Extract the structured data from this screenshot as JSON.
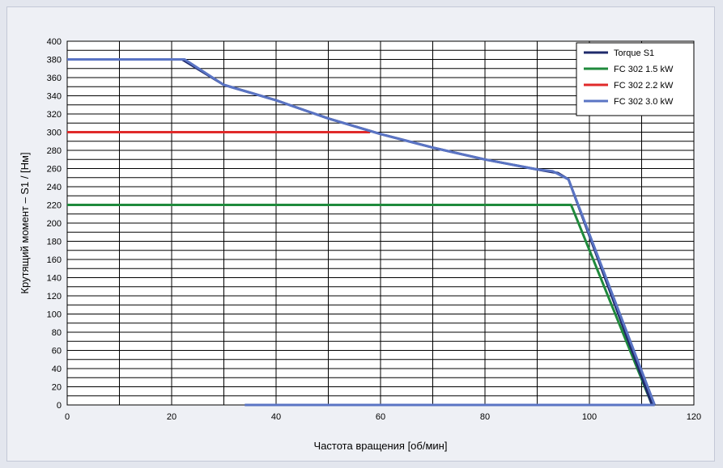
{
  "chart_data": {
    "type": "line",
    "xlabel": "Частота вращения [об/мин]",
    "ylabel": "Крутящий момент – S1 / [Нм]",
    "xlim": [
      0,
      120
    ],
    "ylim": [
      0,
      400
    ],
    "x_ticks": [
      "0",
      "20",
      "40",
      "60",
      "80",
      "100",
      "120"
    ],
    "y_ticks": [
      "0",
      "20",
      "40",
      "60",
      "80",
      "100",
      "120",
      "140",
      "160",
      "180",
      "200",
      "220",
      "240",
      "260",
      "280",
      "300",
      "320",
      "340",
      "360",
      "380",
      "400"
    ],
    "grid": true,
    "legend_position": "top-right",
    "series": [
      {
        "name": "Torque S1",
        "color": "#1f2a6b",
        "points": [
          [
            0,
            380
          ],
          [
            22,
            380
          ],
          [
            30,
            352
          ],
          [
            40,
            335
          ],
          [
            50,
            315
          ],
          [
            60,
            298
          ],
          [
            70,
            283
          ],
          [
            80,
            270
          ],
          [
            90,
            259
          ],
          [
            94,
            255
          ],
          [
            96,
            248
          ],
          [
            112,
            0
          ]
        ]
      },
      {
        "name": "FC 302 1.5 kW",
        "color": "#1f8a3c",
        "points": [
          [
            0,
            220
          ],
          [
            96.5,
            220
          ],
          [
            112,
            0
          ]
        ]
      },
      {
        "name": "FC 302 2.2 kW",
        "color": "#e02a2a",
        "points": [
          [
            0,
            300
          ],
          [
            58,
            300
          ]
        ]
      },
      {
        "name": "FC 302 3.0 kW",
        "color": "#5a74c4",
        "points": [
          [
            0,
            380
          ],
          [
            22.5,
            380
          ],
          [
            30,
            352
          ],
          [
            40,
            335
          ],
          [
            50,
            315
          ],
          [
            60,
            298
          ],
          [
            70,
            283
          ],
          [
            80,
            270
          ],
          [
            90,
            259
          ],
          [
            93,
            257
          ],
          [
            96,
            248
          ],
          [
            112.5,
            0
          ]
        ],
        "extra_segment": [
          [
            34,
            0
          ],
          [
            112.5,
            0
          ]
        ]
      }
    ]
  }
}
